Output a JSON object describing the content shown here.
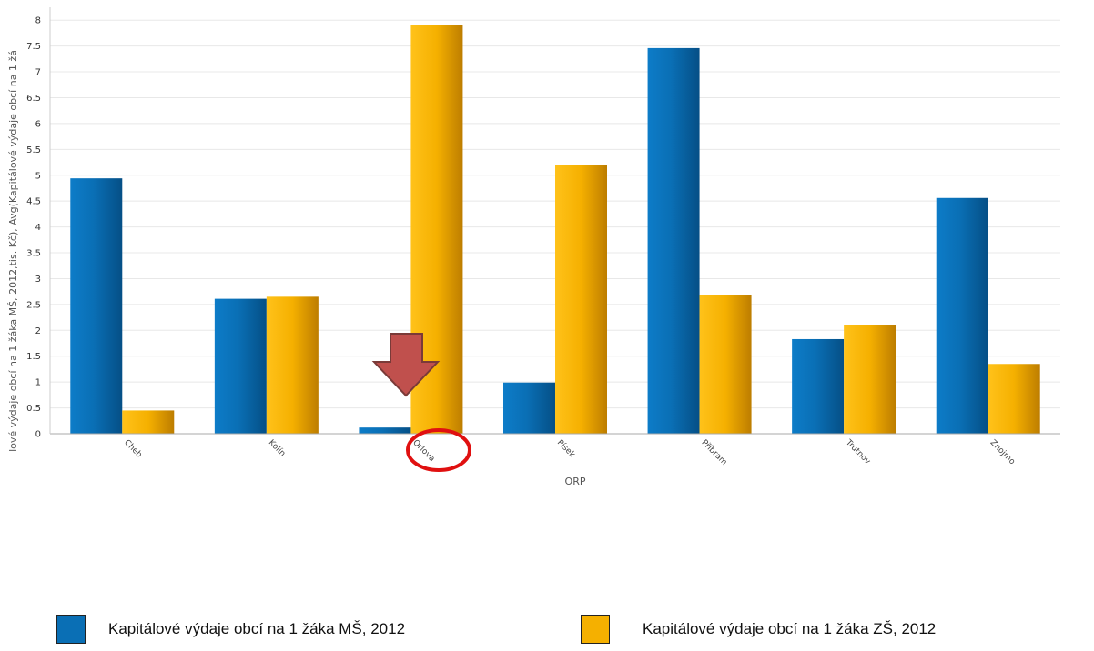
{
  "colors": {
    "series_ms": "#0a6fb5",
    "series_zs": "#f5b000",
    "arrow": "#c0504d",
    "circle": "#e01010"
  },
  "chart_data": {
    "type": "bar",
    "xlabel": "ORP",
    "ylabel": "lové výdaje obcí na 1 žáka MŠ, 2012,tis. Kč), Avg(Kapitálové výdaje obcí na 1 žá",
    "ylim": [
      0,
      8.25
    ],
    "yticks": [
      "0",
      "0.5",
      "1",
      "1.5",
      "2",
      "2.5",
      "3",
      "3.5",
      "4",
      "4.5",
      "5",
      "5.5",
      "6",
      "6.5",
      "7",
      "7.5",
      "8"
    ],
    "categories": [
      "Cheb",
      "Kolín",
      "Orlová",
      "Písek",
      "Příbram",
      "Trutnov",
      "Znojmo"
    ],
    "series": [
      {
        "name": "Kapitálové výdaje obcí na 1 žáka MŠ, 2012",
        "values": [
          4.94,
          2.61,
          0.12,
          0.99,
          7.46,
          1.83,
          4.56
        ]
      },
      {
        "name": "Kapitálové výdaje obcí na 1 žáka ZŠ, 2012",
        "values": [
          0.45,
          2.65,
          7.9,
          5.19,
          2.68,
          2.1,
          1.35
        ]
      }
    ],
    "grid": true,
    "legend_position": "bottom",
    "annotations": {
      "highlighted_category": "Orlová",
      "marks": [
        "down-arrow",
        "circle"
      ]
    }
  }
}
